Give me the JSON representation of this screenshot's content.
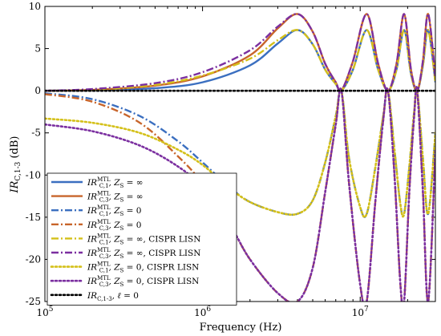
{
  "chart_data": {
    "type": "line",
    "xlabel": "Frequency (Hz)",
    "ylabel": "IR_{C,1-3} (dB)",
    "xscale": "log",
    "xlim": [
      100000,
      30000000
    ],
    "ylim": [
      -25,
      10
    ],
    "grid": false,
    "legend_placement": "bottom-left",
    "x_ticks": [
      {
        "value": 100000,
        "base": "10",
        "exp": "5"
      },
      {
        "value": 1000000,
        "base": "10",
        "exp": "6"
      },
      {
        "value": 10000000,
        "base": "10",
        "exp": "7"
      }
    ],
    "y_ticks": [
      {
        "value": 10,
        "label": "10"
      },
      {
        "value": 5,
        "label": "5"
      },
      {
        "value": 0,
        "label": "0"
      },
      {
        "value": -5,
        "label": "-5"
      },
      {
        "value": -10,
        "label": "-10"
      },
      {
        "value": -15,
        "label": "-15"
      },
      {
        "value": -20,
        "label": "-20"
      },
      {
        "value": -25,
        "label": "-25"
      }
    ],
    "colors": {
      "blue": "#3b6fc0",
      "orange": "#c8652b",
      "yellow": "#d4c019",
      "purple": "#7b2fa0",
      "black": "#000000"
    },
    "series": [
      {
        "name": "IR_{C,1}^{MTL}, Z_S = ∞",
        "color": "#3b6fc0",
        "style": "solid",
        "x": [
          100000,
          200000,
          500000,
          1000000,
          2000000,
          3000000,
          4000000,
          5000000,
          6000000,
          7000000,
          7600000,
          9000000,
          11000000,
          13000000,
          15000000,
          17000000,
          19000000,
          21000000,
          23000000,
          25000000,
          27000000,
          30000000
        ],
        "y": [
          0,
          0.05,
          0.3,
          1.0,
          3.0,
          5.6,
          7.2,
          5.5,
          2.5,
          0.8,
          0,
          2.5,
          7.2,
          2.5,
          0,
          2.5,
          7.2,
          2.0,
          0,
          3.0,
          7.2,
          1.0
        ]
      },
      {
        "name": "IR_{C,3}^{MTL}, Z_S = ∞",
        "color": "#c8652b",
        "style": "solid",
        "x": [
          100000,
          200000,
          500000,
          1000000,
          2000000,
          3000000,
          4000000,
          5000000,
          6000000,
          7000000,
          7600000,
          9000000,
          11000000,
          13000000,
          15000000,
          17000000,
          19000000,
          21000000,
          23000000,
          25000000,
          27000000,
          30000000
        ],
        "y": [
          0,
          0.1,
          0.6,
          1.7,
          4.2,
          7.4,
          9.1,
          7.0,
          3.2,
          1.0,
          0,
          3.5,
          9.1,
          3.2,
          0,
          3.2,
          9.1,
          2.5,
          0,
          3.5,
          9.1,
          1.5
        ]
      },
      {
        "name": "IR_{C,1}^{MTL}, Z_S = 0",
        "color": "#3b6fc0",
        "style": "dashdot",
        "x": [
          100000,
          200000,
          400000,
          700000,
          1000000,
          1500000,
          2000000,
          3000000,
          4000000,
          5000000,
          6000000,
          7000000,
          7600000,
          8500000,
          10000000,
          11000000,
          12500000,
          14000000,
          15000000,
          16500000,
          18000000,
          19000000,
          20500000,
          22000000,
          23000000,
          25000000,
          27000000,
          30000000
        ],
        "y": [
          -0.3,
          -1.0,
          -3.0,
          -6.0,
          -8.5,
          -11.5,
          -13.2,
          -14.4,
          -14.6,
          -13.0,
          -8.5,
          -3.0,
          0,
          -8.0,
          -13.8,
          -14.6,
          -9.0,
          -3.0,
          0,
          -7.0,
          -13.5,
          -14.6,
          -9.0,
          -2.5,
          0,
          -8.0,
          -14.6,
          -5.0
        ]
      },
      {
        "name": "IR_{C,3}^{MTL}, Z_S = 0",
        "color": "#c8652b",
        "style": "dashdot",
        "x": [
          100000,
          200000,
          400000,
          700000,
          1000000,
          1500000,
          2000000,
          3000000,
          4000000,
          5000000,
          6000000,
          7000000,
          7600000,
          8500000,
          10000000,
          11000000,
          12500000,
          14000000,
          15000000,
          16500000,
          18000000,
          19000000,
          20500000,
          22000000,
          23000000,
          25000000,
          27000000,
          30000000
        ],
        "y": [
          -0.4,
          -1.3,
          -3.8,
          -7.8,
          -11.0,
          -16.0,
          -20.0,
          -24.0,
          -25.0,
          -21.0,
          -12.0,
          -4.0,
          0,
          -11.0,
          -23.0,
          -25.0,
          -13.0,
          -3.5,
          0,
          -10.0,
          -23.0,
          -25.0,
          -12.0,
          -3.0,
          0,
          -12.0,
          -25.0,
          -7.0
        ]
      },
      {
        "name": "IR_{C,1}^{MTL}, Z_S = ∞, CISPR LISN",
        "color": "#d4c019",
        "style": "dashdot",
        "x": [
          100000,
          200000,
          500000,
          1000000,
          2000000,
          3000000,
          4000000,
          5000000,
          6000000,
          7000000,
          7600000,
          9000000,
          11000000,
          13000000,
          15000000,
          17000000,
          19000000,
          21000000,
          23000000,
          25000000,
          27000000,
          30000000
        ],
        "y": [
          0,
          0.1,
          0.7,
          1.8,
          3.8,
          6.0,
          7.2,
          5.5,
          2.5,
          0.8,
          0,
          2.5,
          7.2,
          2.5,
          0,
          2.5,
          7.2,
          2.0,
          0,
          3.0,
          7.2,
          1.0
        ]
      },
      {
        "name": "IR_{C,3}^{MTL}, Z_S = ∞, CISPR LISN",
        "color": "#7b2fa0",
        "style": "dashdot",
        "x": [
          100000,
          200000,
          500000,
          1000000,
          2000000,
          3000000,
          4000000,
          5000000,
          6000000,
          7000000,
          7600000,
          9000000,
          11000000,
          13000000,
          15000000,
          17000000,
          19000000,
          21000000,
          23000000,
          25000000,
          27000000,
          30000000
        ],
        "y": [
          0,
          0.2,
          0.9,
          2.2,
          4.8,
          7.6,
          9.1,
          7.0,
          3.2,
          1.0,
          0,
          3.5,
          9.1,
          3.2,
          0,
          3.2,
          9.1,
          2.5,
          0,
          3.5,
          9.1,
          1.5
        ]
      },
      {
        "name": "IR_{C,1}^{MTL}, Z_S = 0, CISPR LISN",
        "color": "#d4c019",
        "style": "dotted",
        "x": [
          100000,
          200000,
          400000,
          700000,
          1000000,
          1500000,
          2000000,
          3000000,
          4000000,
          5000000,
          6000000,
          7000000,
          7600000,
          8500000,
          10000000,
          11000000,
          12500000,
          14000000,
          15000000,
          16500000,
          18000000,
          19000000,
          20500000,
          22000000,
          23000000,
          25000000,
          27000000,
          30000000
        ],
        "y": [
          -3.3,
          -3.8,
          -5.0,
          -7.0,
          -8.8,
          -11.6,
          -13.2,
          -14.4,
          -14.6,
          -13.0,
          -8.5,
          -3.0,
          0,
          -8.0,
          -13.8,
          -14.6,
          -9.0,
          -3.0,
          0,
          -7.0,
          -13.5,
          -14.6,
          -9.0,
          -2.5,
          0,
          -8.0,
          -14.6,
          -5.0
        ]
      },
      {
        "name": "IR_{C,3}^{MTL}, Z_S = 0, CISPR LISN",
        "color": "#7b2fa0",
        "style": "dotted",
        "x": [
          100000,
          200000,
          400000,
          700000,
          1000000,
          1500000,
          2000000,
          3000000,
          4000000,
          5000000,
          6000000,
          7000000,
          7600000,
          8500000,
          10000000,
          11000000,
          12500000,
          14000000,
          15000000,
          16500000,
          18000000,
          19000000,
          20500000,
          22000000,
          23000000,
          25000000,
          27000000,
          30000000
        ],
        "y": [
          -4.0,
          -4.8,
          -6.5,
          -9.0,
          -11.5,
          -16.0,
          -20.0,
          -24.0,
          -25.0,
          -21.0,
          -12.0,
          -4.0,
          0,
          -11.0,
          -23.0,
          -25.0,
          -13.0,
          -3.5,
          0,
          -10.0,
          -23.0,
          -25.0,
          -12.0,
          -3.0,
          0,
          -12.0,
          -25.0,
          -7.0
        ]
      },
      {
        "name": "IR_{C,1-3}, ℓ = 0",
        "color": "#000000",
        "style": "dotted",
        "x": [
          100000,
          30000000
        ],
        "y": [
          0,
          0
        ]
      }
    ],
    "legend": [
      {
        "base": "IR",
        "sup": "MTL",
        "sub": "C,1",
        "rest": ", Z",
        "rest_sub": "S",
        "tail": " = ∞",
        "color": "#3b6fc0",
        "style": "solid"
      },
      {
        "base": "IR",
        "sup": "MTL",
        "sub": "C,3",
        "rest": ", Z",
        "rest_sub": "S",
        "tail": " = ∞",
        "color": "#c8652b",
        "style": "solid"
      },
      {
        "base": "IR",
        "sup": "MTL",
        "sub": "C,1",
        "rest": ", Z",
        "rest_sub": "S",
        "tail": " = 0",
        "color": "#3b6fc0",
        "style": "dashdot"
      },
      {
        "base": "IR",
        "sup": "MTL",
        "sub": "C,3",
        "rest": ", Z",
        "rest_sub": "S",
        "tail": " = 0",
        "color": "#c8652b",
        "style": "dashdot"
      },
      {
        "base": "IR",
        "sup": "MTL",
        "sub": "C,1",
        "rest": ", Z",
        "rest_sub": "S",
        "tail": " = ∞, CISPR LISN",
        "color": "#d4c019",
        "style": "dashdot"
      },
      {
        "base": "IR",
        "sup": "MTL",
        "sub": "C,3",
        "rest": ", Z",
        "rest_sub": "S",
        "tail": " = ∞, CISPR LISN",
        "color": "#7b2fa0",
        "style": "dashdot"
      },
      {
        "base": "IR",
        "sup": "MTL",
        "sub": "C,1",
        "rest": ", Z",
        "rest_sub": "S",
        "tail": " = 0, CISPR LISN",
        "color": "#d4c019",
        "style": "dotted"
      },
      {
        "base": "IR",
        "sup": "MTL",
        "sub": "C,3",
        "rest": ", Z",
        "rest_sub": "S",
        "tail": " = 0, CISPR LISN",
        "color": "#7b2fa0",
        "style": "dotted"
      },
      {
        "base": "IR",
        "sup": "",
        "sub": "C,1-3",
        "rest": ", ℓ",
        "rest_sub": "",
        "tail": " = 0",
        "color": "#000000",
        "style": "dotted"
      }
    ]
  }
}
